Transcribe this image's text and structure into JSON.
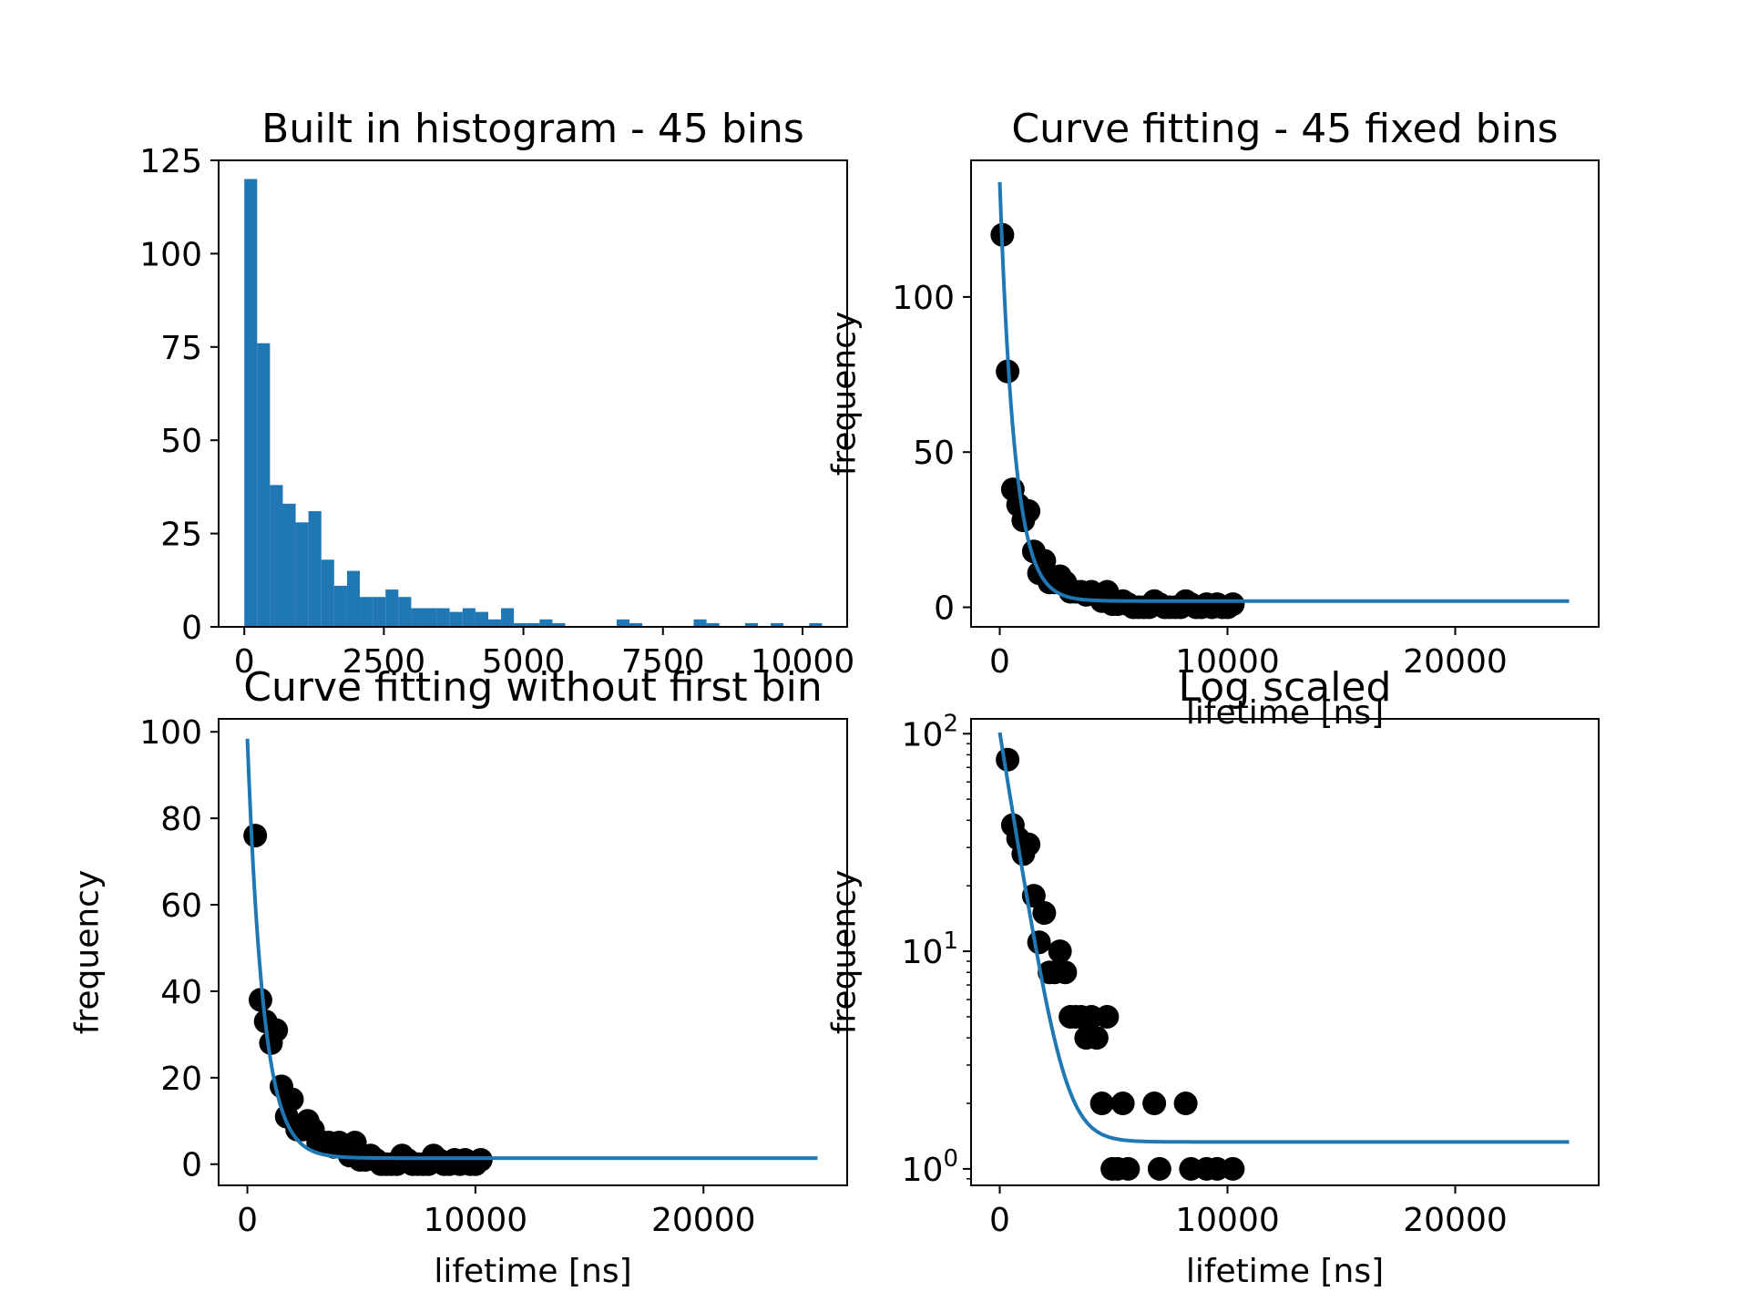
{
  "chart_data": [
    {
      "type": "bar",
      "title": "Built in histogram - 45 bins",
      "xlabel": "",
      "ylabel": "",
      "xlim": [
        -460,
        10800
      ],
      "ylim": [
        0,
        125
      ],
      "x_ticks": [
        0,
        2500,
        5000,
        7500,
        10000
      ],
      "x_tick_labels": [
        "0",
        "2500",
        "5000",
        "7500",
        "10000"
      ],
      "y_ticks": [
        0,
        25,
        50,
        75,
        100,
        125
      ],
      "y_tick_labels": [
        "0",
        "25",
        "50",
        "75",
        "100",
        "125"
      ],
      "color": "#1f77b4",
      "bin_start": 0,
      "bin_width": 230,
      "values": [
        120,
        76,
        38,
        33,
        28,
        31,
        18,
        11,
        15,
        8,
        8,
        10,
        8,
        5,
        5,
        5,
        4,
        5,
        4,
        2,
        5,
        1,
        1,
        2,
        1,
        0,
        0,
        0,
        0,
        2,
        1,
        0,
        0,
        0,
        0,
        2,
        1,
        0,
        0,
        1,
        0,
        1,
        0,
        0,
        1
      ]
    },
    {
      "type": "scatter",
      "title": "Curve fitting - 45 fixed bins",
      "xlabel": "lifetime [ns]",
      "ylabel": "frequency",
      "xlim": [
        -1260,
        26300
      ],
      "ylim": [
        -6.3,
        144
      ],
      "x_ticks": [
        0,
        10000,
        20000
      ],
      "x_tick_labels": [
        "0",
        "10000",
        "20000"
      ],
      "y_ticks": [
        0,
        50,
        100
      ],
      "y_tick_labels": [
        "0",
        "50",
        "100"
      ],
      "point_color": "#000000",
      "fit_color": "#1f77b4",
      "fit": {
        "A": 135,
        "tau": 650,
        "C": 2.0,
        "x_range": [
          0,
          25000
        ]
      },
      "x": [
        115,
        345,
        575,
        805,
        1035,
        1265,
        1495,
        1725,
        1955,
        2185,
        2415,
        2645,
        2875,
        3105,
        3335,
        3565,
        3795,
        4025,
        4255,
        4485,
        4715,
        4945,
        5175,
        5405,
        5635,
        5865,
        6095,
        6325,
        6555,
        6785,
        7015,
        7245,
        7475,
        7705,
        7935,
        8165,
        8395,
        8625,
        8855,
        9085,
        9315,
        9545,
        9775,
        10005,
        10235
      ],
      "y": [
        120,
        76,
        38,
        33,
        28,
        31,
        18,
        11,
        15,
        8,
        8,
        10,
        8,
        5,
        5,
        5,
        4,
        5,
        4,
        2,
        5,
        1,
        1,
        2,
        1,
        0,
        0,
        0,
        0,
        2,
        1,
        0,
        0,
        0,
        0,
        2,
        1,
        0,
        0,
        1,
        0,
        1,
        0,
        0,
        1
      ]
    },
    {
      "type": "scatter",
      "title": "Curve fitting without first bin",
      "xlabel": "lifetime [ns]",
      "ylabel": "frequency",
      "xlim": [
        -1260,
        26300
      ],
      "ylim": [
        -4.9,
        103
      ],
      "x_ticks": [
        0,
        10000,
        20000
      ],
      "x_tick_labels": [
        "0",
        "10000",
        "20000"
      ],
      "y_ticks": [
        0,
        20,
        40,
        60,
        80,
        100
      ],
      "y_tick_labels": [
        "0",
        "20",
        "40",
        "60",
        "80",
        "100"
      ],
      "point_color": "#000000",
      "fit_color": "#1f77b4",
      "fit": {
        "A": 97,
        "tau": 700,
        "C": 1.4,
        "x_range": [
          0,
          25000
        ]
      },
      "x": [
        345,
        575,
        805,
        1035,
        1265,
        1495,
        1725,
        1955,
        2185,
        2415,
        2645,
        2875,
        3105,
        3335,
        3565,
        3795,
        4025,
        4255,
        4485,
        4715,
        4945,
        5175,
        5405,
        5635,
        5865,
        6095,
        6325,
        6555,
        6785,
        7015,
        7245,
        7475,
        7705,
        7935,
        8165,
        8395,
        8625,
        8855,
        9085,
        9315,
        9545,
        9775,
        10005,
        10235
      ],
      "y": [
        76,
        38,
        33,
        28,
        31,
        18,
        11,
        15,
        8,
        8,
        10,
        8,
        5,
        5,
        5,
        4,
        5,
        4,
        2,
        5,
        1,
        1,
        2,
        1,
        0,
        0,
        0,
        0,
        2,
        1,
        0,
        0,
        0,
        0,
        2,
        1,
        0,
        0,
        1,
        0,
        1,
        0,
        0,
        1
      ]
    },
    {
      "type": "scatter",
      "title": "Log scaled",
      "xlabel": "lifetime [ns]",
      "ylabel": "frequency",
      "y_scale": "log",
      "xlim": [
        -1260,
        26300
      ],
      "ylim": [
        0.84,
        117
      ],
      "x_ticks": [
        0,
        10000,
        20000
      ],
      "x_tick_labels": [
        "0",
        "10000",
        "20000"
      ],
      "y_ticks": [
        1,
        10,
        100
      ],
      "y_tick_base": [
        "10",
        "10",
        "10"
      ],
      "y_tick_exponent": [
        "0",
        "1",
        "2"
      ],
      "point_color": "#000000",
      "fit_color": "#1f77b4",
      "fit": {
        "A": 100,
        "tau": 660,
        "C": 1.33,
        "x_range": [
          0,
          25000
        ]
      },
      "x": [
        345,
        575,
        805,
        1035,
        1265,
        1495,
        1725,
        1955,
        2185,
        2415,
        2645,
        2875,
        3105,
        3335,
        3565,
        3795,
        4025,
        4255,
        4485,
        4715,
        4945,
        5175,
        5405,
        5635,
        6785,
        7015,
        8165,
        8395,
        9085,
        9545,
        10235
      ],
      "y": [
        76,
        38,
        33,
        28,
        31,
        18,
        11,
        15,
        8,
        8,
        10,
        8,
        5,
        5,
        5,
        4,
        5,
        4,
        2,
        5,
        1,
        1,
        2,
        1,
        2,
        1,
        2,
        1,
        1,
        1,
        1
      ]
    }
  ]
}
